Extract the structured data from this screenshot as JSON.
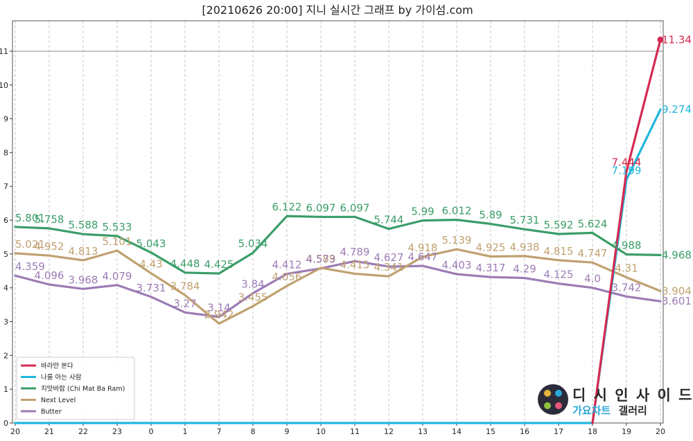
{
  "chart_data": {
    "type": "line",
    "title": "[20210626 20:00] 지니 실시간 그래프 by 가이섬.com",
    "xlabel": "",
    "ylabel": "",
    "x": [
      "20",
      "21",
      "22",
      "23",
      "0",
      "1",
      "7",
      "8",
      "9",
      "10",
      "11",
      "12",
      "13",
      "14",
      "15",
      "16",
      "17",
      "18",
      "19",
      "20"
    ],
    "ylim": [
      0,
      11.9
    ],
    "yticks": [
      "0",
      "1",
      "2",
      "3",
      "4",
      "5",
      "6",
      "7",
      "8",
      "9",
      "10",
      "11"
    ],
    "reference_line": 11,
    "grid": "vertical dashed",
    "legend_position": "bottom-left",
    "series": [
      {
        "name": "바라만 본다",
        "color": "#d6294f",
        "values": [
          null,
          null,
          null,
          null,
          null,
          null,
          null,
          null,
          null,
          null,
          null,
          null,
          null,
          null,
          null,
          null,
          null,
          0,
          7.444,
          11.34
        ],
        "labels": [
          null,
          null,
          null,
          null,
          null,
          null,
          null,
          null,
          null,
          null,
          null,
          null,
          null,
          null,
          null,
          null,
          null,
          null,
          "7.444",
          "11.34"
        ]
      },
      {
        "name": "나를 아는 사람",
        "color": "#1fb6dc",
        "values": [
          0,
          0,
          0,
          0,
          0,
          0,
          0,
          0,
          0,
          0,
          0,
          0,
          0,
          0,
          0,
          0,
          0,
          0,
          7.199,
          9.274
        ],
        "labels": [
          null,
          null,
          null,
          null,
          null,
          null,
          null,
          null,
          null,
          null,
          null,
          null,
          null,
          null,
          null,
          null,
          null,
          null,
          "7.199",
          "9.274"
        ]
      },
      {
        "name": "치맛바람 (Chi Mat Ba Ram)",
        "color": "#3a9d68",
        "values": [
          5.801,
          5.758,
          5.588,
          5.533,
          5.043,
          4.448,
          4.425,
          5.034,
          6.122,
          6.097,
          6.097,
          5.744,
          5.99,
          6.012,
          5.89,
          5.731,
          5.592,
          5.624,
          4.988,
          4.968
        ],
        "labels": [
          "5.801",
          "5.758",
          "5.588",
          "5.533",
          "5.043",
          "4.448",
          "4.425",
          "5.034",
          "6.122",
          "6.097",
          "6.097",
          "5.744",
          "5.99",
          "6.012",
          "5.89",
          "5.731",
          "5.592",
          "5.624",
          "4.988",
          "4.968"
        ]
      },
      {
        "name": "Next Level",
        "color": "#c0a070",
        "values": [
          5.021,
          4.952,
          4.813,
          5.101,
          4.43,
          3.784,
          2.942,
          3.455,
          4.056,
          4.589,
          4.415,
          4.341,
          4.918,
          5.139,
          4.925,
          4.938,
          4.815,
          4.747,
          4.31,
          3.904
        ],
        "labels": [
          "5.021",
          "4.952",
          "4.813",
          "5.101",
          "4.43",
          "3.784",
          "2.942",
          "3.455",
          "4.056",
          "4.589",
          "4.415",
          "4.341",
          "4.918",
          "5.139",
          "4.925",
          "4.938",
          "4.815",
          "4.747",
          "4.31",
          "3.904"
        ]
      },
      {
        "name": "Butter",
        "color": "#9c7bb5",
        "values": [
          4.359,
          4.096,
          3.968,
          4.079,
          3.731,
          3.27,
          3.14,
          3.84,
          4.412,
          4.573,
          4.789,
          4.627,
          4.647,
          4.403,
          4.317,
          4.29,
          4.125,
          4.0,
          3.742,
          3.601
        ],
        "labels": [
          "4.359",
          "4.096",
          "3.968",
          "4.079",
          "3.731",
          "3.27",
          "3.14",
          "3.84",
          "4.412",
          "4.573",
          "4.789",
          "4.627",
          "4.647",
          "4.403",
          "4.317",
          "4.29",
          "4.125",
          "4.0",
          "3.742",
          "3.601"
        ]
      }
    ]
  },
  "watermark": {
    "line1": "디 시 인 사 이 드",
    "line2a": "가요차트",
    "line2b": "갤러리",
    "line2a_color": "#2aa7d8",
    "line2b_color": "#2a2a2a"
  }
}
